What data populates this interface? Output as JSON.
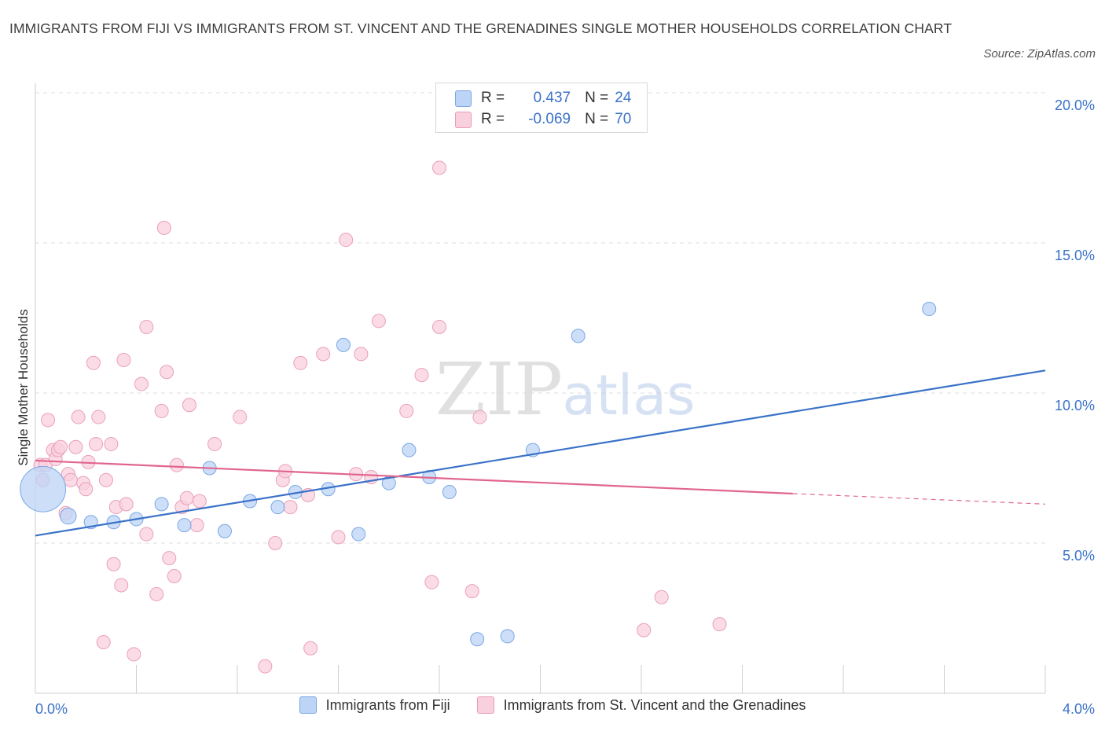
{
  "title": "IMMIGRANTS FROM FIJI VS IMMIGRANTS FROM ST. VINCENT AND THE GRENADINES SINGLE MOTHER HOUSEHOLDS CORRELATION CHART",
  "source": "Source: ZipAtlas.com",
  "watermark": {
    "zip": "ZIP",
    "atlas": "atlas"
  },
  "colors": {
    "fiji": "#3a72c8",
    "fiji_fill": "#bcd4f6",
    "stvincent": "#e0668e",
    "stvincent_fill": "#f9d0dd",
    "grid": "#dcdcdc",
    "axis_label": "#3a72c8"
  },
  "stats": {
    "fiji": {
      "r_label": "R =",
      "r": "0.437",
      "n_label": "N =",
      "n": "24"
    },
    "stvincent": {
      "r_label": "R =",
      "r": "-0.069",
      "n_label": "N =",
      "n": "70"
    }
  },
  "legend": {
    "fiji": "Immigrants from Fiji",
    "stvincent": "Immigrants from St. Vincent and the Grenadines"
  },
  "chart_data": {
    "type": "scatter",
    "ylabel": "Single Mother Households",
    "xlabel": "",
    "xlim": [
      0,
      4.0
    ],
    "ylim": [
      0,
      20.0
    ],
    "x_tick_labels": [
      "0.0%",
      "4.0%"
    ],
    "y_ticks": [
      5,
      10,
      15,
      20
    ],
    "y_tick_labels": [
      "5.0%",
      "10.0%",
      "15.0%",
      "20.0%"
    ],
    "grid": true,
    "legend_position": "bottom",
    "series": [
      {
        "name": "Immigrants from Fiji",
        "points": [
          [
            0.03,
            6.8
          ],
          [
            0.13,
            5.9
          ],
          [
            0.22,
            5.7
          ],
          [
            0.31,
            5.7
          ],
          [
            0.4,
            5.8
          ],
          [
            0.5,
            6.3
          ],
          [
            0.59,
            5.6
          ],
          [
            0.69,
            7.5
          ],
          [
            0.75,
            5.4
          ],
          [
            0.85,
            6.4
          ],
          [
            0.96,
            6.2
          ],
          [
            1.03,
            6.7
          ],
          [
            1.16,
            6.8
          ],
          [
            1.22,
            11.6
          ],
          [
            1.28,
            5.3
          ],
          [
            1.4,
            7.0
          ],
          [
            1.48,
            8.1
          ],
          [
            1.56,
            7.2
          ],
          [
            1.64,
            6.7
          ],
          [
            1.75,
            1.8
          ],
          [
            1.87,
            1.9
          ],
          [
            1.97,
            8.1
          ],
          [
            2.15,
            11.9
          ],
          [
            3.54,
            12.8
          ]
        ],
        "sizes": [
          3.4,
          1.2,
          1,
          1,
          1,
          1,
          1,
          1,
          1,
          1,
          1,
          1,
          1,
          1,
          1,
          1,
          1,
          1,
          1,
          1,
          1,
          1,
          1,
          1
        ],
        "trend": {
          "x": [
            0,
            4.0
          ],
          "y": [
            5.25,
            10.75
          ]
        }
      },
      {
        "name": "Immigrants from St. Vincent and the Grenadines",
        "points": [
          [
            0.02,
            7.6
          ],
          [
            0.03,
            7.1
          ],
          [
            0.04,
            7.6
          ],
          [
            0.05,
            9.1
          ],
          [
            0.07,
            8.1
          ],
          [
            0.08,
            7.8
          ],
          [
            0.09,
            8.1
          ],
          [
            0.1,
            8.2
          ],
          [
            0.12,
            6.0
          ],
          [
            0.13,
            7.3
          ],
          [
            0.14,
            7.1
          ],
          [
            0.16,
            8.2
          ],
          [
            0.17,
            9.2
          ],
          [
            0.19,
            7.0
          ],
          [
            0.2,
            6.8
          ],
          [
            0.21,
            7.7
          ],
          [
            0.23,
            11.0
          ],
          [
            0.24,
            8.3
          ],
          [
            0.25,
            9.2
          ],
          [
            0.27,
            1.7
          ],
          [
            0.28,
            7.1
          ],
          [
            0.3,
            8.3
          ],
          [
            0.31,
            4.3
          ],
          [
            0.32,
            6.2
          ],
          [
            0.34,
            3.6
          ],
          [
            0.35,
            11.1
          ],
          [
            0.36,
            6.3
          ],
          [
            0.39,
            1.3
          ],
          [
            0.42,
            10.3
          ],
          [
            0.44,
            12.2
          ],
          [
            0.44,
            5.3
          ],
          [
            0.48,
            3.3
          ],
          [
            0.5,
            9.4
          ],
          [
            0.51,
            15.5
          ],
          [
            0.52,
            10.7
          ],
          [
            0.53,
            4.5
          ],
          [
            0.55,
            3.9
          ],
          [
            0.56,
            7.6
          ],
          [
            0.58,
            6.2
          ],
          [
            0.6,
            6.5
          ],
          [
            0.61,
            9.6
          ],
          [
            0.64,
            5.6
          ],
          [
            0.65,
            6.4
          ],
          [
            0.71,
            8.3
          ],
          [
            0.81,
            9.2
          ],
          [
            0.91,
            0.9
          ],
          [
            0.95,
            5.0
          ],
          [
            0.98,
            7.1
          ],
          [
            0.99,
            7.4
          ],
          [
            1.01,
            6.2
          ],
          [
            1.05,
            11.0
          ],
          [
            1.08,
            6.6
          ],
          [
            1.09,
            1.5
          ],
          [
            1.14,
            11.3
          ],
          [
            1.2,
            5.2
          ],
          [
            1.23,
            15.1
          ],
          [
            1.27,
            7.3
          ],
          [
            1.29,
            11.3
          ],
          [
            1.33,
            7.2
          ],
          [
            1.36,
            12.4
          ],
          [
            1.47,
            9.4
          ],
          [
            1.53,
            10.6
          ],
          [
            1.57,
            3.7
          ],
          [
            1.6,
            12.2
          ],
          [
            1.6,
            17.5
          ],
          [
            1.73,
            3.4
          ],
          [
            1.76,
            9.2
          ],
          [
            2.41,
            2.1
          ],
          [
            2.48,
            3.2
          ],
          [
            2.71,
            2.3
          ]
        ],
        "trend": {
          "x": [
            0,
            3.0
          ],
          "y": [
            7.75,
            6.65
          ]
        },
        "trend_extension": {
          "x": [
            3.0,
            4.0
          ],
          "y": [
            6.65,
            6.3
          ]
        }
      }
    ]
  }
}
